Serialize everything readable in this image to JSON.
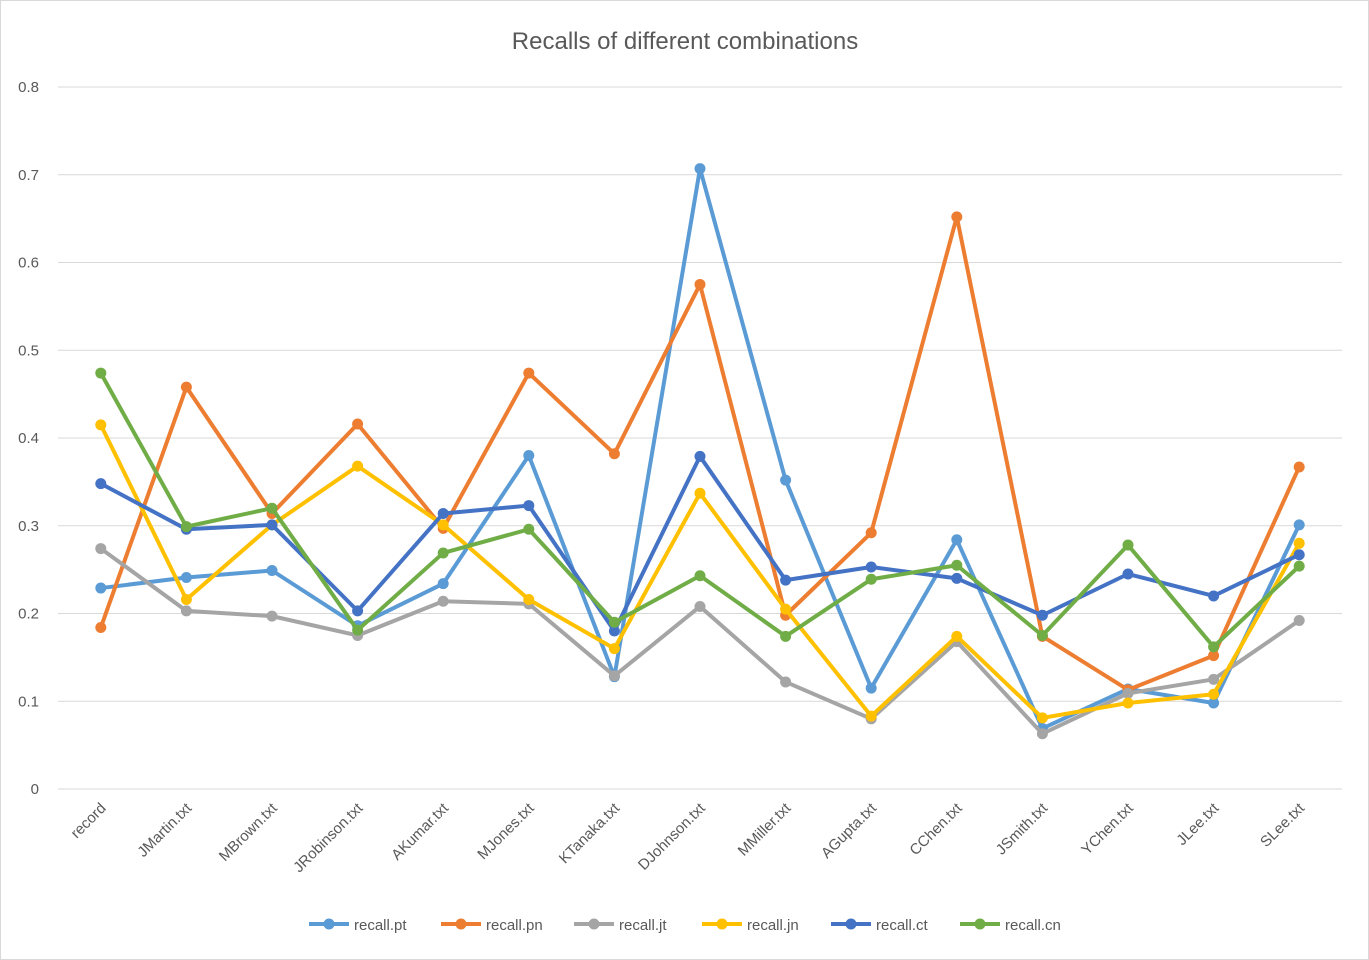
{
  "chart_data": {
    "type": "line",
    "title": "Recalls of different combinations",
    "xlabel": "",
    "ylabel": "",
    "ylim": [
      0,
      0.8
    ],
    "yticks": [
      "0",
      "0.1",
      "0.2",
      "0.3",
      "0.4",
      "0.5",
      "0.6",
      "0.7",
      "0.8"
    ],
    "grid": true,
    "legend_position": "bottom",
    "categories": [
      "record",
      "JMartin.txt",
      "MBrown.txt",
      "JRobinson.txt",
      "AKumar.txt",
      "MJones.txt",
      "KTanaka.txt",
      "DJohnson.txt",
      "MMiller.txt",
      "AGupta.txt",
      "CChen.txt",
      "JSmith.txt",
      "YChen.txt",
      "JLee.txt",
      "SLee.txt"
    ],
    "series": [
      {
        "name": "recall.pt",
        "color": "#5B9BD5",
        "values": [
          0.229,
          0.241,
          0.249,
          0.186,
          0.234,
          0.38,
          0.128,
          0.707,
          0.352,
          0.115,
          0.284,
          0.069,
          0.114,
          0.098,
          0.301
        ]
      },
      {
        "name": "recall.pn",
        "color": "#ED7D31",
        "values": [
          0.184,
          0.458,
          0.314,
          0.416,
          0.297,
          0.474,
          0.382,
          0.575,
          0.198,
          0.292,
          0.652,
          0.174,
          0.113,
          0.152,
          0.367
        ]
      },
      {
        "name": "recall.jt",
        "color": "#A5A5A5",
        "values": [
          0.274,
          0.203,
          0.197,
          0.175,
          0.214,
          0.211,
          0.129,
          0.208,
          0.122,
          0.08,
          0.168,
          0.063,
          0.109,
          0.125,
          0.192
        ]
      },
      {
        "name": "recall.jn",
        "color": "#FFC000",
        "values": [
          0.415,
          0.216,
          0.301,
          0.368,
          0.301,
          0.216,
          0.16,
          0.337,
          0.205,
          0.083,
          0.174,
          0.081,
          0.098,
          0.108,
          0.28
        ]
      },
      {
        "name": "recall.ct",
        "color": "#4472C4",
        "values": [
          0.348,
          0.296,
          0.301,
          0.203,
          0.314,
          0.323,
          0.18,
          0.379,
          0.238,
          0.253,
          0.24,
          0.198,
          0.245,
          0.22,
          0.267
        ]
      },
      {
        "name": "recall.cn",
        "color": "#70AD47",
        "values": [
          0.474,
          0.299,
          0.32,
          0.181,
          0.269,
          0.296,
          0.19,
          0.243,
          0.174,
          0.239,
          0.255,
          0.175,
          0.278,
          0.162,
          0.254
        ]
      }
    ]
  }
}
